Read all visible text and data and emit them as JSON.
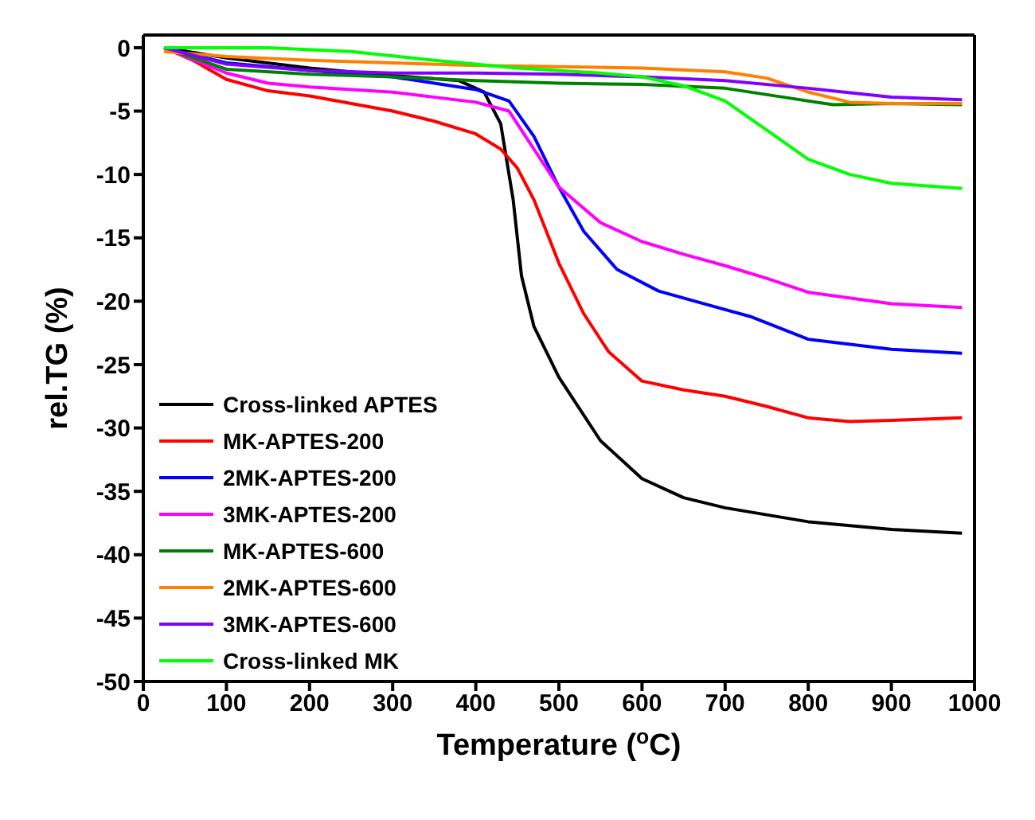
{
  "chart_data": {
    "type": "line",
    "xlabel": "Temperature ($^{o}$C)",
    "ylabel": "rel.TG (%)",
    "xlim": [
      0,
      1000
    ],
    "ylim": [
      -50,
      1
    ],
    "xticks": [
      0,
      100,
      200,
      300,
      400,
      500,
      600,
      700,
      800,
      900,
      1000
    ],
    "yticks": [
      -50,
      -45,
      -40,
      -35,
      -30,
      -25,
      -20,
      -15,
      -10,
      -5,
      0
    ],
    "legend": "bottom left",
    "marker": "none",
    "line_style": "solid",
    "series": [
      {
        "name": "Cross-linked APTES",
        "color": "#000000",
        "x": [
          25,
          100,
          200,
          300,
          380,
          410,
          430,
          445,
          455,
          470,
          500,
          550,
          600,
          650,
          700,
          800,
          900,
          985
        ],
        "values": [
          0,
          -0.8,
          -1.6,
          -2.2,
          -2.6,
          -3.5,
          -6,
          -12,
          -18,
          -22,
          -26,
          -31,
          -34,
          -35.5,
          -36.3,
          -37.4,
          -38,
          -38.3
        ]
      },
      {
        "name": "MK-APTES-200",
        "color": "#ff0000",
        "x": [
          25,
          60,
          100,
          150,
          200,
          300,
          350,
          400,
          430,
          450,
          470,
          500,
          530,
          560,
          600,
          650,
          700,
          750,
          800,
          850,
          900,
          985
        ],
        "values": [
          0,
          -1,
          -2.5,
          -3.4,
          -3.8,
          -5,
          -5.8,
          -6.8,
          -8,
          -9.5,
          -12,
          -17,
          -21,
          -24,
          -26.3,
          -27,
          -27.5,
          -28.3,
          -29.2,
          -29.5,
          -29.4,
          -29.2
        ]
      },
      {
        "name": "2MK-APTES-200",
        "color": "#0000ff",
        "x": [
          25,
          100,
          200,
          300,
          400,
          440,
          470,
          500,
          530,
          570,
          620,
          680,
          730,
          800,
          900,
          985
        ],
        "values": [
          0,
          -1.2,
          -1.8,
          -2.3,
          -3.3,
          -4.2,
          -7,
          -11,
          -14.5,
          -17.5,
          -19.2,
          -20.3,
          -21.2,
          -23,
          -23.8,
          -24.1
        ]
      },
      {
        "name": "3MK-APTES-200",
        "color": "#ff00ff",
        "x": [
          25,
          100,
          150,
          200,
          300,
          400,
          440,
          470,
          500,
          550,
          600,
          650,
          700,
          750,
          800,
          900,
          985
        ],
        "values": [
          0,
          -2,
          -2.8,
          -3.1,
          -3.5,
          -4.3,
          -5,
          -8,
          -11,
          -13.8,
          -15.3,
          -16.3,
          -17.2,
          -18.2,
          -19.3,
          -20.2,
          -20.5
        ]
      },
      {
        "name": "MK-APTES-600",
        "color": "#008000",
        "x": [
          25,
          100,
          200,
          300,
          400,
          500,
          600,
          700,
          780,
          830,
          900,
          985
        ],
        "values": [
          0,
          -1.7,
          -2.1,
          -2.3,
          -2.6,
          -2.8,
          -2.9,
          -3.2,
          -4,
          -4.5,
          -4.4,
          -4.5
        ]
      },
      {
        "name": "2MK-APTES-600",
        "color": "#ff8000",
        "x": [
          25,
          100,
          200,
          300,
          400,
          500,
          600,
          700,
          750,
          800,
          850,
          900,
          985
        ],
        "values": [
          -0.3,
          -0.7,
          -1,
          -1.2,
          -1.4,
          -1.5,
          -1.6,
          -1.9,
          -2.4,
          -3.5,
          -4.3,
          -4.4,
          -4.4
        ]
      },
      {
        "name": "3MK-APTES-600",
        "color": "#8000ff",
        "x": [
          25,
          100,
          200,
          300,
          400,
          500,
          600,
          700,
          800,
          900,
          985
        ],
        "values": [
          0,
          -1.3,
          -1.8,
          -2,
          -2,
          -2.1,
          -2.3,
          -2.6,
          -3.2,
          -3.9,
          -4.1
        ]
      },
      {
        "name": "Cross-linked MK",
        "color": "#00ff00",
        "x": [
          25,
          150,
          250,
          350,
          450,
          550,
          600,
          650,
          700,
          750,
          800,
          850,
          900,
          985
        ],
        "values": [
          0,
          0,
          -0.3,
          -1,
          -1.6,
          -2,
          -2.3,
          -3,
          -4.2,
          -6.5,
          -8.8,
          -10,
          -10.7,
          -11.1
        ]
      }
    ]
  }
}
